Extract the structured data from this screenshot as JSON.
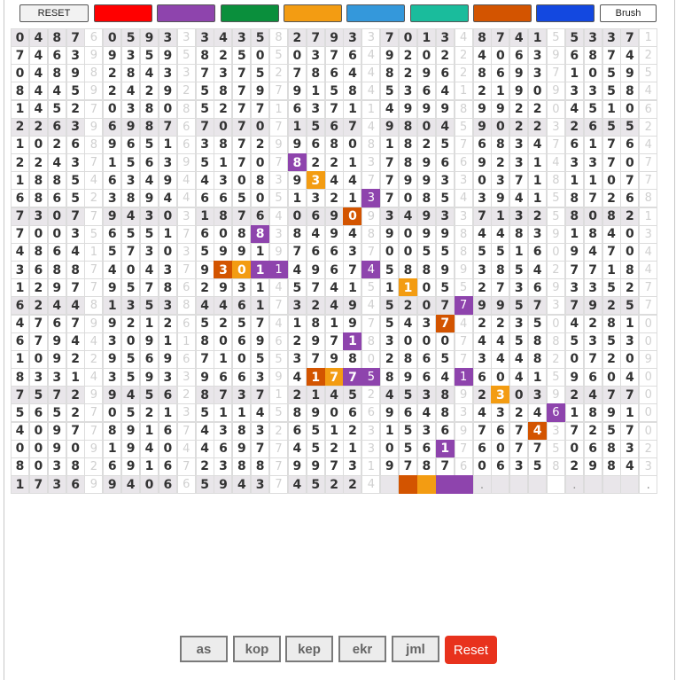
{
  "toolbar": {
    "reset_label": "RESET",
    "brush_label": "Brush",
    "palette": [
      "#ff0000",
      "#8e44ad",
      "#0a8f3c",
      "#f39c12",
      "#3498db",
      "#1abc9c",
      "#d35400",
      "#1348e0"
    ]
  },
  "grid": {
    "rows": [
      "04876059333435827933701348741553371",
      "74639935958250503764920224063968742",
      "04898284337375278644829628693710595",
      "84459242925879791584536412190933584",
      "14527038085277163711499989922045106",
      "22639698767070715674980459022326552",
      "10268965163872996808182576834761764",
      "22437156395170782213789669231433707",
      "18854634944308393447799330371811077",
      "68652389446650513213708543941587268",
      "73077943031876406909349337132580821",
      "70035655176088384948909984483918403",
      "48641573035991976637005585516094704",
      "36887404379301149674588993854277184",
      "12977957862931457415110552736933527",
      "62448135384461732494520779957379257",
      "47679921265257418197543742235042810",
      "67944309118069629718300074458853530",
      "10922956967105537980286573448207209",
      "83314359339663941775896416041596040",
      "75729945628737121452453892303924770",
      "56527052135114589066964834324618910",
      "40977891674383265123153697674372570",
      "00909194044697745213056176077506832",
      "80382691672388799731978760635829843",
      "17369940665943745224"
    ],
    "highlights": [
      {
        "row": 7,
        "col": 15,
        "color": "#8e44ad"
      },
      {
        "row": 8,
        "col": 16,
        "color": "#f39c12"
      },
      {
        "row": 9,
        "col": 19,
        "color": "#8e44ad"
      },
      {
        "row": 10,
        "col": 18,
        "color": "#d35400"
      },
      {
        "row": 11,
        "col": 13,
        "color": "#8e44ad"
      },
      {
        "row": 13,
        "col": 11,
        "color": "#d35400"
      },
      {
        "row": 13,
        "col": 12,
        "color": "#f39c12"
      },
      {
        "row": 13,
        "col": 13,
        "color": "#8e44ad"
      },
      {
        "row": 13,
        "col": 14,
        "color": "#8e44ad"
      },
      {
        "row": 13,
        "col": 19,
        "color": "#8e44ad"
      },
      {
        "row": 14,
        "col": 21,
        "color": "#f39c12"
      },
      {
        "row": 15,
        "col": 24,
        "color": "#8e44ad"
      },
      {
        "row": 16,
        "col": 23,
        "color": "#d35400"
      },
      {
        "row": 17,
        "col": 18,
        "color": "#8e44ad"
      },
      {
        "row": 19,
        "col": 16,
        "color": "#d35400"
      },
      {
        "row": 19,
        "col": 17,
        "color": "#f39c12"
      },
      {
        "row": 19,
        "col": 18,
        "color": "#8e44ad"
      },
      {
        "row": 19,
        "col": 19,
        "color": "#8e44ad"
      },
      {
        "row": 19,
        "col": 24,
        "color": "#8e44ad"
      },
      {
        "row": 20,
        "col": 26,
        "color": "#f39c12"
      },
      {
        "row": 21,
        "col": 29,
        "color": "#8e44ad"
      },
      {
        "row": 22,
        "col": 28,
        "color": "#d35400"
      },
      {
        "row": 23,
        "col": 23,
        "color": "#8e44ad"
      }
    ],
    "trail": [
      "#d35400",
      "#f39c12",
      "#8e44ad",
      "#8e44ad"
    ],
    "trail_dots": ".....",
    "colors": {
      "shade": "#e9e6ea",
      "highlight_default": "#8e44ad"
    }
  },
  "nav": {
    "buttons": [
      "as",
      "kop",
      "kep",
      "ekr",
      "jml"
    ],
    "reset_label": "Reset"
  }
}
